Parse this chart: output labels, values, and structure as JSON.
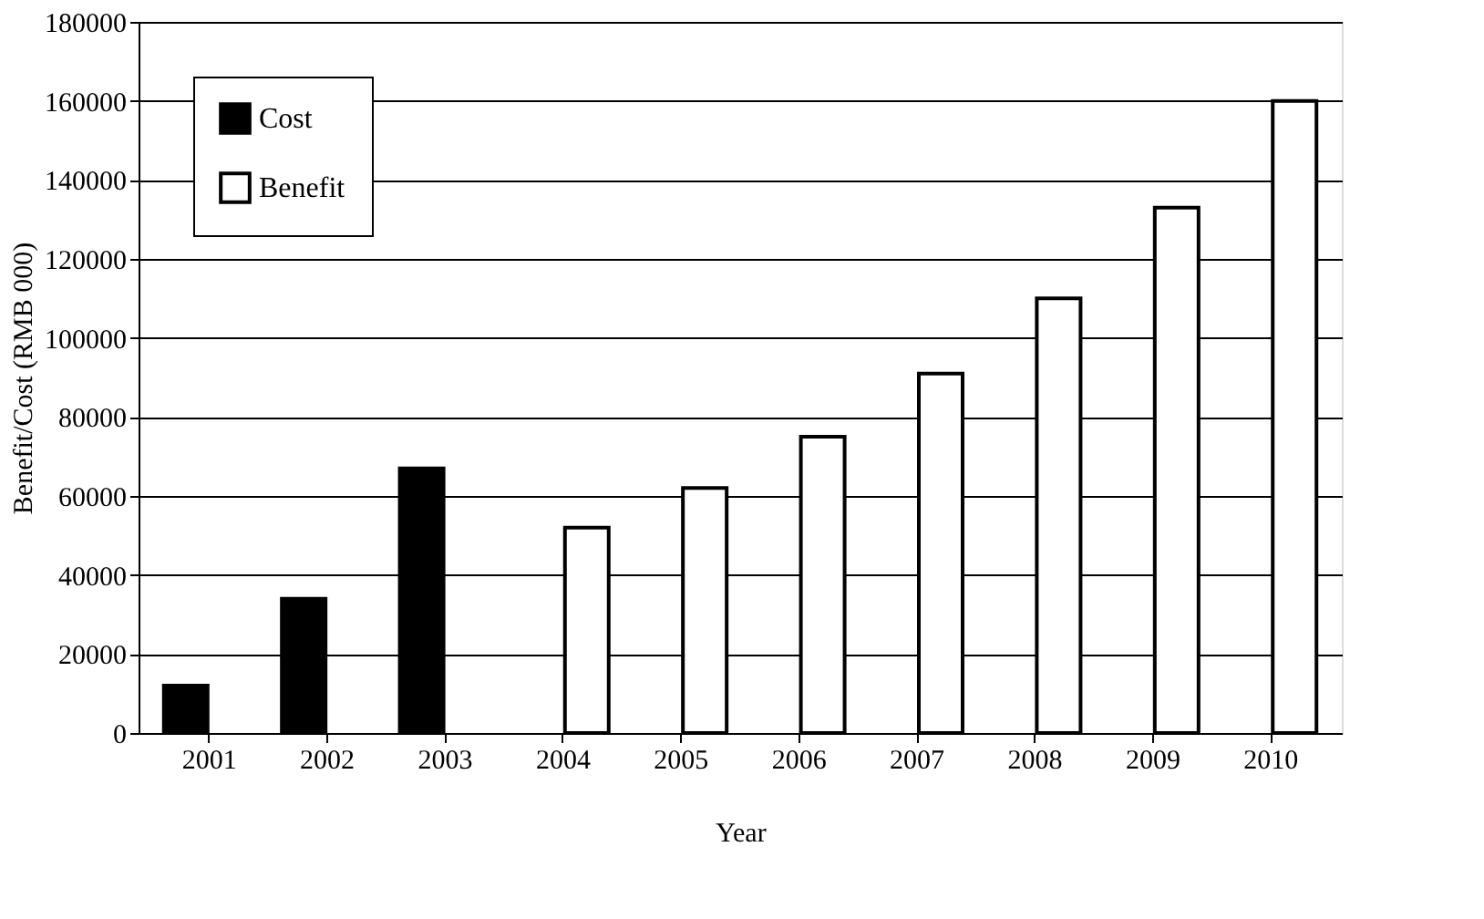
{
  "chart_data": {
    "type": "bar",
    "xlabel": "Year",
    "ylabel": "Benefit/Cost (RMB 000)",
    "categories": [
      "2001",
      "2002",
      "2003",
      "2004",
      "2005",
      "2006",
      "2007",
      "2008",
      "2009",
      "2010"
    ],
    "series": [
      {
        "name": "Cost",
        "color": "#000000",
        "values": [
          12000,
          34000,
          67000,
          0,
          0,
          0,
          0,
          0,
          0,
          0
        ]
      },
      {
        "name": "Benefit",
        "color": "#ffffff",
        "values": [
          0,
          0,
          0,
          52000,
          62000,
          75000,
          91000,
          110000,
          133000,
          160000
        ]
      }
    ],
    "ylim": [
      0,
      180000
    ],
    "yticks": [
      0,
      20000,
      40000,
      60000,
      80000,
      100000,
      120000,
      140000,
      160000,
      180000
    ],
    "grid": "y",
    "legend": "top left"
  }
}
